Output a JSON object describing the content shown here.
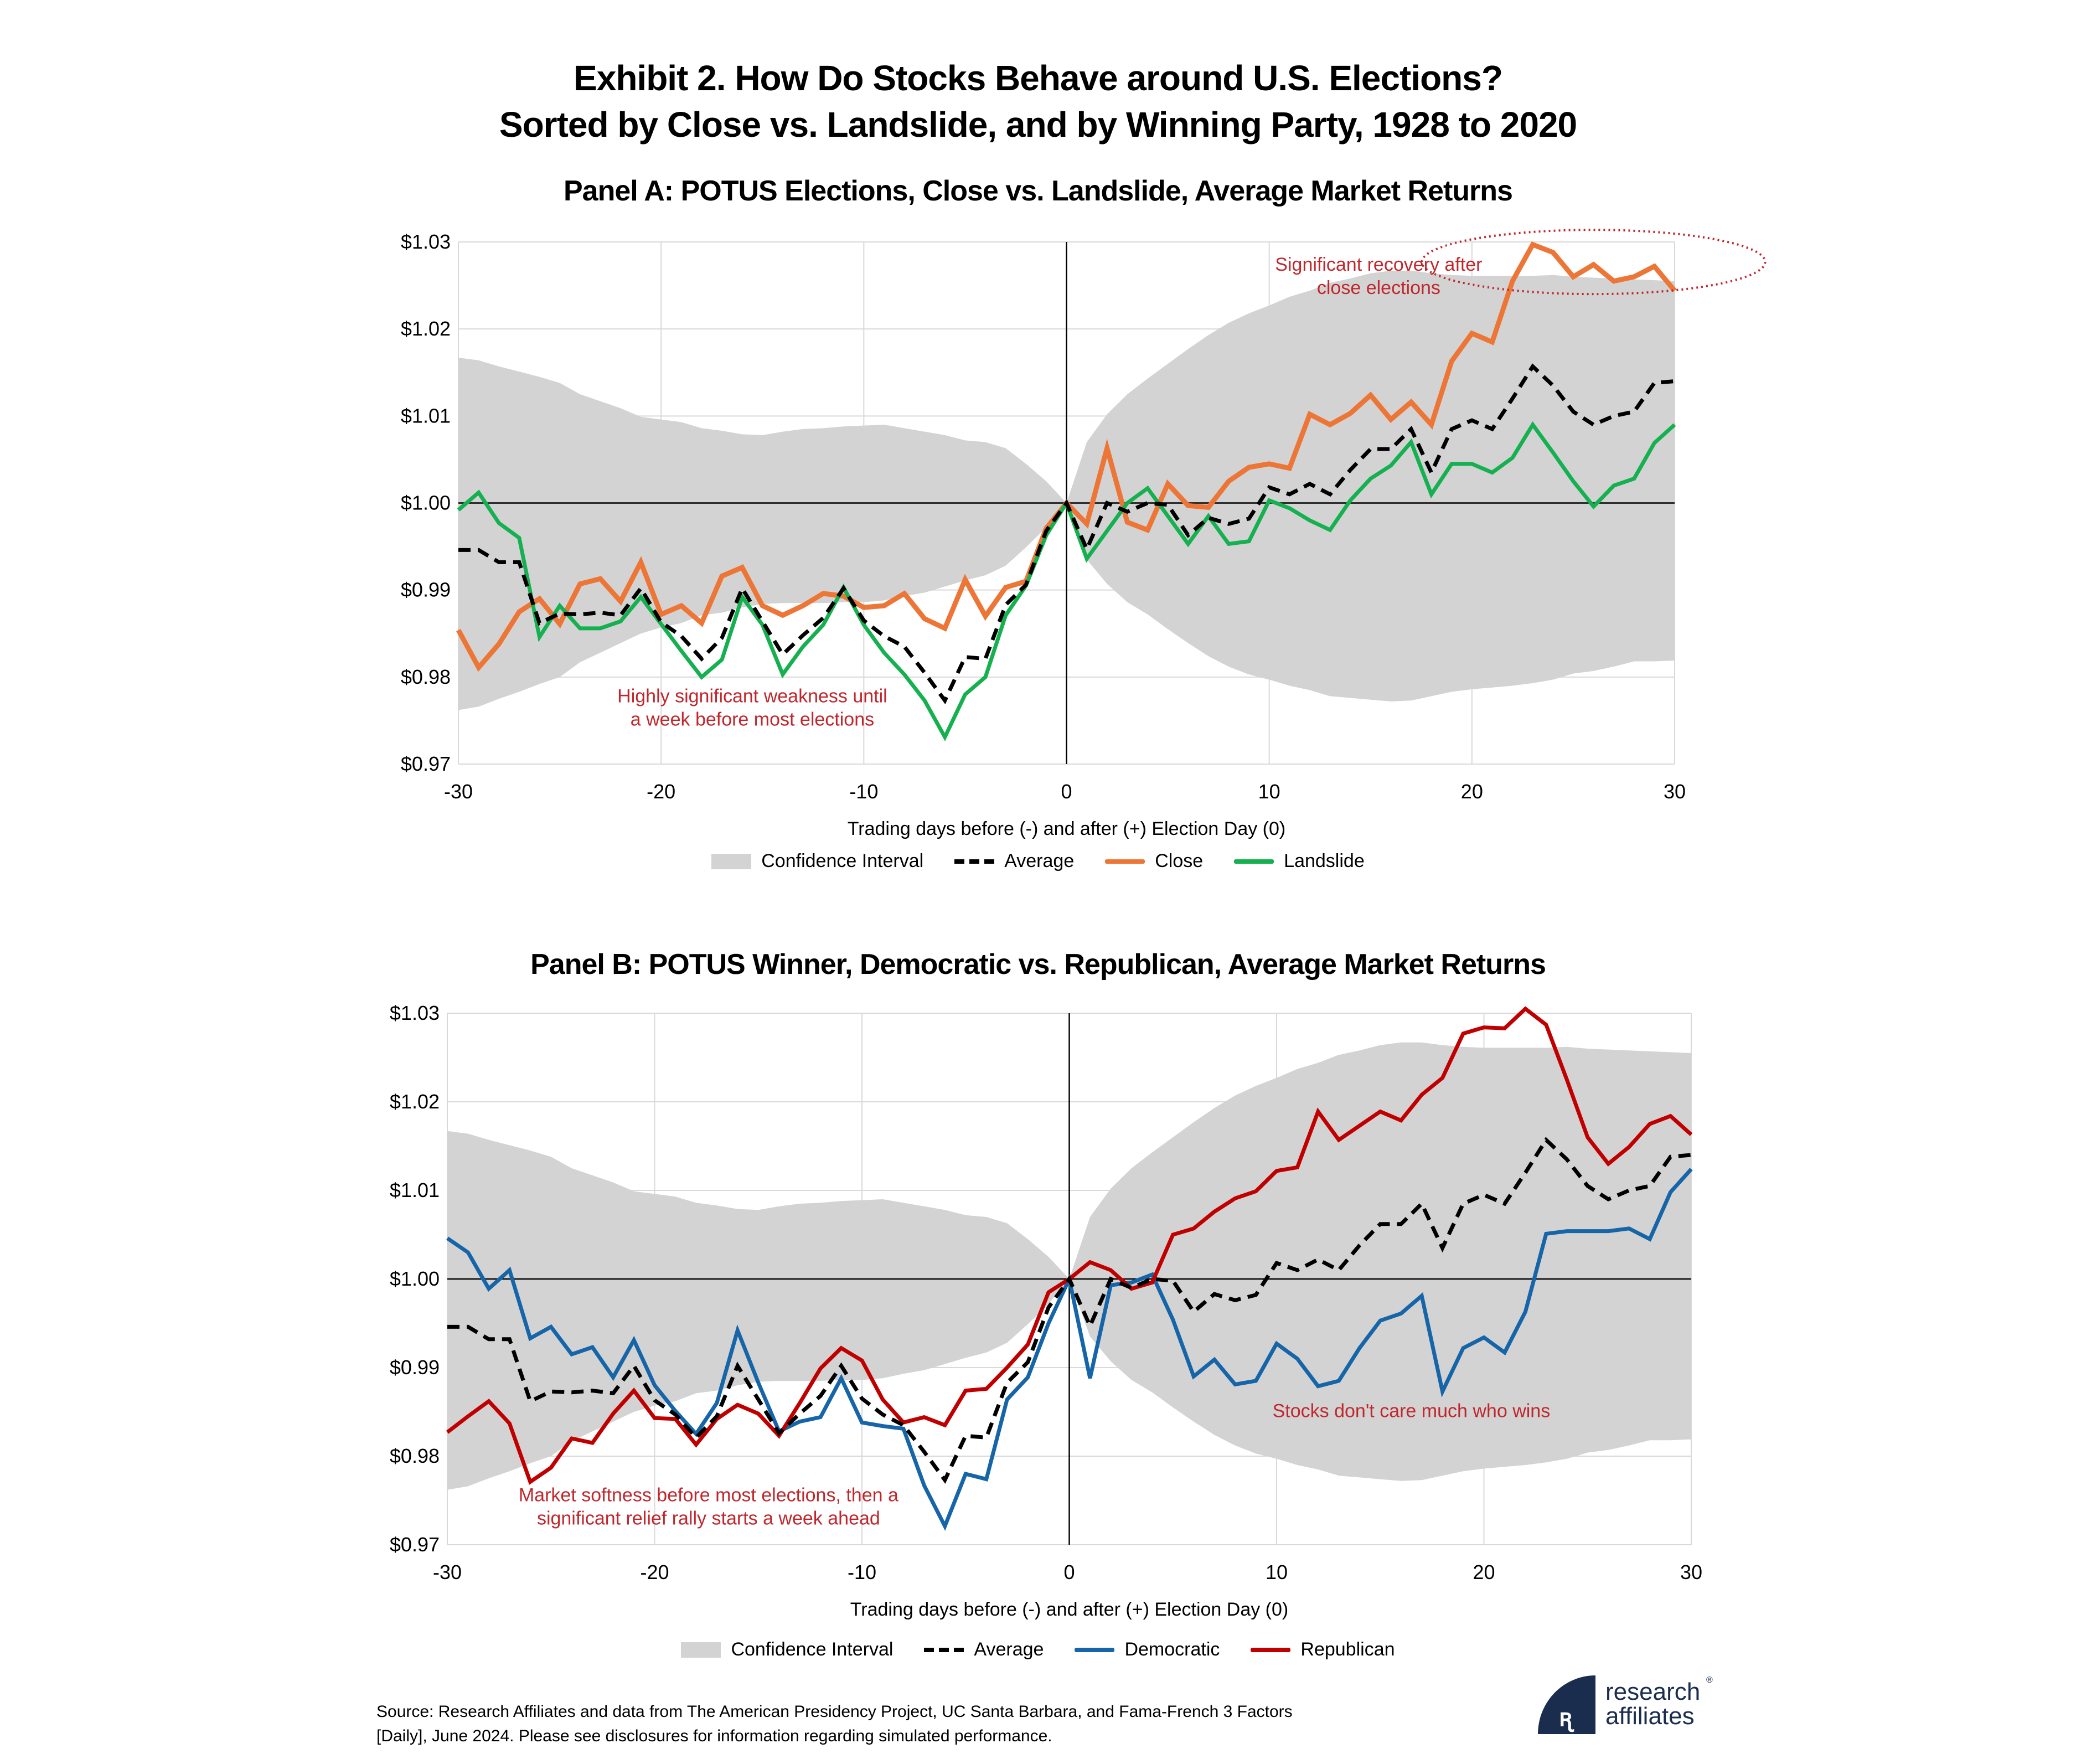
{
  "header": {
    "title_line1": "Exhibit 2. How Do Stocks Behave around U.S. Elections?",
    "title_line2": "Sorted by Close vs. Landslide, and by Winning Party, 1928 to 2020"
  },
  "chart_data": [
    {
      "id": "panelA",
      "type": "line",
      "title": "Panel A: POTUS Elections, Close vs. Landslide, Average Market Returns",
      "xlabel": "Trading days before (-) and after (+) Election Day (0)",
      "ylabel": "",
      "xlim": [
        -30,
        30
      ],
      "ylim": [
        0.97,
        1.03
      ],
      "xticks": [
        -30,
        -20,
        -10,
        0,
        10,
        20,
        30
      ],
      "xtick_labels": [
        "-30",
        "-20",
        "-10",
        "0",
        "10",
        "20",
        "30"
      ],
      "yticks": [
        0.97,
        0.98,
        0.99,
        1.0,
        1.01,
        1.02,
        1.03
      ],
      "ytick_labels": [
        "$0.97",
        "$0.98",
        "$0.99",
        "$1.00",
        "$1.01",
        "$1.02",
        "$1.03"
      ],
      "grid": true,
      "legend_position": "bottom-center",
      "x": [
        -30,
        -29,
        -28,
        -27,
        -26,
        -25,
        -24,
        -23,
        -22,
        -21,
        -20,
        -19,
        -18,
        -17,
        -16,
        -15,
        -14,
        -13,
        -12,
        -11,
        -10,
        -9,
        -8,
        -7,
        -6,
        -5,
        -4,
        -3,
        -2,
        -1,
        0,
        1,
        2,
        3,
        4,
        5,
        6,
        7,
        8,
        9,
        10,
        11,
        12,
        13,
        14,
        15,
        16,
        17,
        18,
        19,
        20,
        21,
        22,
        23,
        24,
        25,
        26,
        27,
        28,
        29,
        30
      ],
      "band": {
        "name": "Confidence Interval",
        "color": "#d3d3d3",
        "upper": [
          1.0167,
          1.0164,
          1.0157,
          1.0151,
          1.0145,
          1.0138,
          1.0125,
          1.0117,
          1.0109,
          1.0099,
          1.0096,
          1.0093,
          1.0086,
          1.0083,
          1.0079,
          1.0078,
          1.0082,
          1.0085,
          1.0086,
          1.0088,
          1.0089,
          1.009,
          1.0086,
          1.0082,
          1.0078,
          1.0072,
          1.007,
          1.0063,
          1.0045,
          1.0025,
          1.0,
          1.007,
          1.0102,
          1.0125,
          1.0143,
          1.016,
          1.0177,
          1.0193,
          1.0207,
          1.0218,
          1.0227,
          1.0237,
          1.0244,
          1.0253,
          1.0258,
          1.0264,
          1.0267,
          1.0267,
          1.0264,
          1.0262,
          1.0261,
          1.0261,
          1.0261,
          1.0261,
          1.0262,
          1.026,
          1.0259,
          1.0258,
          1.0257,
          1.0256,
          1.0255
        ],
        "lower": [
          0.9762,
          0.9766,
          0.9775,
          0.9783,
          0.9792,
          0.98,
          0.9817,
          0.9828,
          0.9839,
          0.985,
          0.9857,
          0.9862,
          0.9871,
          0.9874,
          0.988,
          0.9884,
          0.9885,
          0.9885,
          0.9885,
          0.9886,
          0.9886,
          0.9888,
          0.9893,
          0.9897,
          0.9904,
          0.9911,
          0.9917,
          0.9928,
          0.9949,
          0.9972,
          1.0,
          0.9935,
          0.9907,
          0.9886,
          0.9872,
          0.9855,
          0.9839,
          0.9824,
          0.9812,
          0.9803,
          0.9797,
          0.979,
          0.9785,
          0.9778,
          0.9776,
          0.9774,
          0.9772,
          0.9773,
          0.9778,
          0.9783,
          0.9786,
          0.9788,
          0.979,
          0.9793,
          0.9797,
          0.9804,
          0.9807,
          0.9812,
          0.9818,
          0.9818,
          0.9819
        ]
      },
      "series": [
        {
          "name": "Average",
          "color": "#000000",
          "dash": true,
          "values": [
            0.9946,
            0.9946,
            0.9932,
            0.9932,
            0.9862,
            0.9873,
            0.9872,
            0.9874,
            0.9871,
            0.9902,
            0.9863,
            0.9847,
            0.9821,
            0.9845,
            0.9902,
            0.9864,
            0.9826,
            0.9848,
            0.9868,
            0.9902,
            0.9865,
            0.9847,
            0.9835,
            0.9805,
            0.9773,
            0.9823,
            0.9821,
            0.9883,
            0.9906,
            0.9968,
            1.0,
            0.9947,
            1.0,
            0.999,
            1.0,
            0.9998,
            0.9963,
            0.9983,
            0.9976,
            0.9982,
            1.0018,
            1.001,
            1.0022,
            1.001,
            1.0038,
            1.0062,
            1.0062,
            1.0085,
            1.0035,
            1.0085,
            1.0095,
            1.0085,
            1.012,
            1.0157,
            1.0135,
            1.0105,
            1.009,
            1.01,
            1.0105,
            1.0138,
            1.014
          ]
        },
        {
          "name": "Close",
          "color": "#ed7536",
          "dash": false,
          "values": [
            0.9854,
            0.9811,
            0.9838,
            0.9875,
            0.989,
            0.9861,
            0.9907,
            0.9913,
            0.9887,
            0.9932,
            0.9872,
            0.9882,
            0.9862,
            0.9916,
            0.9926,
            0.9882,
            0.9871,
            0.9882,
            0.9896,
            0.9893,
            0.988,
            0.9882,
            0.9896,
            0.9867,
            0.9856,
            0.9912,
            0.987,
            0.9903,
            0.991,
            0.9971,
            1.0,
            0.9976,
            1.0063,
            0.9978,
            0.9969,
            1.0022,
            0.9997,
            0.9995,
            1.0025,
            1.0041,
            1.0045,
            1.004,
            1.0102,
            1.009,
            1.0103,
            1.0124,
            1.0096,
            1.0116,
            1.009,
            1.0163,
            1.0195,
            1.0185,
            1.0255,
            1.0297,
            1.0288,
            1.026,
            1.0274,
            1.0255,
            1.026,
            1.0272,
            1.0244
          ]
        },
        {
          "name": "Landslide",
          "color": "#15b04f",
          "dash": false,
          "values": [
            0.9992,
            1.0012,
            0.9977,
            0.996,
            0.9846,
            0.9882,
            0.9856,
            0.9856,
            0.9864,
            0.9892,
            0.9861,
            0.983,
            0.98,
            0.982,
            0.9892,
            0.986,
            0.9803,
            0.9835,
            0.986,
            0.9903,
            0.986,
            0.9828,
            0.9803,
            0.9773,
            0.9731,
            0.978,
            0.98,
            0.9871,
            0.9905,
            0.9963,
            1.0,
            0.9936,
            0.9968,
            1.0,
            1.0017,
            0.9985,
            0.9953,
            0.9985,
            0.9953,
            0.9956,
            1.0003,
            0.9994,
            0.998,
            0.9969,
            1.0003,
            1.0028,
            1.0043,
            1.007,
            1.001,
            1.0045,
            1.0045,
            1.0035,
            1.0052,
            1.009,
            1.0058,
            1.0025,
            0.9996,
            1.002,
            1.0028,
            1.0069,
            1.009
          ]
        }
      ],
      "annotations": [
        {
          "text_line1": "Significant recovery after",
          "text_line2": "close elections",
          "x": 15.4,
          "y": 1.0267,
          "highlight": "dotted ellipse around days 22-30"
        },
        {
          "text_line1": "Highly significant weakness until",
          "text_line2": "a week before most elections",
          "x": -15.5,
          "y": 0.9771
        }
      ],
      "legend": [
        "Confidence Interval",
        "Average",
        "Close",
        "Landslide"
      ]
    },
    {
      "id": "panelB",
      "type": "line",
      "title": "Panel B: POTUS Winner, Democratic vs. Republican, Average Market Returns",
      "xlabel": "Trading days before (-) and after (+) Election Day (0)",
      "ylabel": "",
      "xlim": [
        -30,
        30
      ],
      "ylim": [
        0.97,
        1.03
      ],
      "xticks": [
        -30,
        -20,
        -10,
        0,
        10,
        20,
        30
      ],
      "xtick_labels": [
        "-30",
        "-20",
        "-10",
        "0",
        "10",
        "20",
        "30"
      ],
      "yticks": [
        0.97,
        0.98,
        0.99,
        1.0,
        1.01,
        1.02,
        1.03
      ],
      "ytick_labels": [
        "$0.97",
        "$0.98",
        "$0.99",
        "$1.00",
        "$1.01",
        "$1.02",
        "$1.03"
      ],
      "grid": true,
      "legend_position": "bottom-center",
      "x": [
        -30,
        -29,
        -28,
        -27,
        -26,
        -25,
        -24,
        -23,
        -22,
        -21,
        -20,
        -19,
        -18,
        -17,
        -16,
        -15,
        -14,
        -13,
        -12,
        -11,
        -10,
        -9,
        -8,
        -7,
        -6,
        -5,
        -4,
        -3,
        -2,
        -1,
        0,
        1,
        2,
        3,
        4,
        5,
        6,
        7,
        8,
        9,
        10,
        11,
        12,
        13,
        14,
        15,
        16,
        17,
        18,
        19,
        20,
        21,
        22,
        23,
        24,
        25,
        26,
        27,
        28,
        29,
        30
      ],
      "band": {
        "name": "Confidence Interval",
        "color": "#d3d3d3",
        "upper": [
          1.0167,
          1.0164,
          1.0157,
          1.0151,
          1.0145,
          1.0138,
          1.0125,
          1.0117,
          1.0109,
          1.0099,
          1.0096,
          1.0093,
          1.0086,
          1.0083,
          1.0079,
          1.0078,
          1.0082,
          1.0085,
          1.0086,
          1.0088,
          1.0089,
          1.009,
          1.0086,
          1.0082,
          1.0078,
          1.0072,
          1.007,
          1.0063,
          1.0045,
          1.0025,
          1.0,
          1.007,
          1.0102,
          1.0125,
          1.0143,
          1.016,
          1.0177,
          1.0193,
          1.0207,
          1.0218,
          1.0227,
          1.0237,
          1.0244,
          1.0253,
          1.0258,
          1.0264,
          1.0267,
          1.0267,
          1.0264,
          1.0262,
          1.0261,
          1.0261,
          1.0261,
          1.0261,
          1.0262,
          1.026,
          1.0259,
          1.0258,
          1.0257,
          1.0256,
          1.0255
        ],
        "lower": [
          0.9762,
          0.9766,
          0.9775,
          0.9783,
          0.9792,
          0.98,
          0.9817,
          0.9828,
          0.9839,
          0.985,
          0.9857,
          0.9862,
          0.9871,
          0.9874,
          0.988,
          0.9884,
          0.9885,
          0.9885,
          0.9885,
          0.9886,
          0.9886,
          0.9888,
          0.9893,
          0.9897,
          0.9904,
          0.9911,
          0.9917,
          0.9928,
          0.9949,
          0.9972,
          1.0,
          0.9935,
          0.9907,
          0.9886,
          0.9872,
          0.9855,
          0.9839,
          0.9824,
          0.9812,
          0.9803,
          0.9797,
          0.979,
          0.9785,
          0.9778,
          0.9776,
          0.9774,
          0.9772,
          0.9773,
          0.9778,
          0.9783,
          0.9786,
          0.9788,
          0.979,
          0.9793,
          0.9797,
          0.9804,
          0.9807,
          0.9812,
          0.9818,
          0.9818,
          0.9819
        ]
      },
      "series": [
        {
          "name": "Average",
          "color": "#000000",
          "dash": true,
          "values": [
            0.9946,
            0.9946,
            0.9932,
            0.9932,
            0.9862,
            0.9873,
            0.9872,
            0.9874,
            0.9871,
            0.9902,
            0.9863,
            0.9847,
            0.9821,
            0.9845,
            0.9902,
            0.9864,
            0.9826,
            0.9848,
            0.9868,
            0.9902,
            0.9865,
            0.9847,
            0.9835,
            0.9805,
            0.9773,
            0.9823,
            0.9821,
            0.9883,
            0.9906,
            0.9968,
            1.0,
            0.9947,
            1.0,
            0.999,
            1.0,
            0.9998,
            0.9963,
            0.9983,
            0.9976,
            0.9982,
            1.0018,
            1.001,
            1.0022,
            1.001,
            1.0038,
            1.0062,
            1.0062,
            1.0085,
            1.0035,
            1.0085,
            1.0095,
            1.0085,
            1.012,
            1.0157,
            1.0135,
            1.0105,
            1.009,
            1.01,
            1.0105,
            1.0138,
            1.014
          ]
        },
        {
          "name": "Democratic",
          "color": "#1565a8",
          "dash": false,
          "values": [
            1.0046,
            1.003,
            0.9989,
            1.001,
            0.9933,
            0.9946,
            0.9915,
            0.9923,
            0.9889,
            0.9931,
            0.988,
            0.9851,
            0.9825,
            0.986,
            0.9942,
            0.9883,
            0.9828,
            0.9839,
            0.9844,
            0.9888,
            0.9838,
            0.9834,
            0.9831,
            0.9767,
            0.9721,
            0.978,
            0.9774,
            0.9864,
            0.9889,
            0.995,
            1.0,
            0.9888,
            0.9993,
            0.9996,
            1.0005,
            0.9954,
            0.989,
            0.9909,
            0.9881,
            0.9885,
            0.9927,
            0.991,
            0.9879,
            0.9885,
            0.9922,
            0.9953,
            0.9961,
            0.9981,
            0.9873,
            0.9922,
            0.9934,
            0.9917,
            0.9963,
            1.0051,
            1.0054,
            1.0054,
            1.0054,
            1.0057,
            1.0045,
            1.0098,
            1.0124
          ]
        },
        {
          "name": "Republican",
          "color": "#c00000",
          "dash": false,
          "values": [
            0.9827,
            0.9845,
            0.9862,
            0.9837,
            0.9771,
            0.9787,
            0.982,
            0.9815,
            0.9848,
            0.9874,
            0.9843,
            0.9842,
            0.9813,
            0.9842,
            0.9858,
            0.9848,
            0.9823,
            0.986,
            0.9899,
            0.9922,
            0.9908,
            0.9864,
            0.9838,
            0.9844,
            0.9835,
            0.9874,
            0.9876,
            0.99,
            0.9926,
            0.9985,
            1.0,
            1.0019,
            1.001,
            0.9989,
            0.9996,
            1.005,
            1.0057,
            1.0076,
            1.0091,
            1.0099,
            1.0122,
            1.0126,
            1.0189,
            1.0157,
            1.0173,
            1.0189,
            1.0179,
            1.0208,
            1.0227,
            1.0277,
            1.0284,
            1.0283,
            1.0305,
            1.0287,
            1.0225,
            1.016,
            1.013,
            1.0149,
            1.0175,
            1.0184,
            1.0163
          ]
        }
      ],
      "annotations": [
        {
          "text_line1": "Stocks don't care much who wins",
          "text_line2": "",
          "x": 16.5,
          "y": 0.9844
        },
        {
          "text_line1": "Market softness before most elections, then a",
          "text_line2": "significant relief rally starts a week ahead",
          "x": -17.4,
          "y": 0.9749
        }
      ],
      "legend": [
        "Confidence Interval",
        "Average",
        "Democratic",
        "Republican"
      ]
    }
  ],
  "footer": {
    "source_line1": "Source: Research Affiliates and data from The American Presidency Project, UC Santa Barbara, and Fama-French 3 Factors",
    "source_line2": "[Daily], June 2024. Please see disclosures for information regarding simulated performance.",
    "logo_line1": "research",
    "logo_line2": "affiliates",
    "logo_registered": "®",
    "logo_icon": "research-affiliates-logo-icon"
  }
}
